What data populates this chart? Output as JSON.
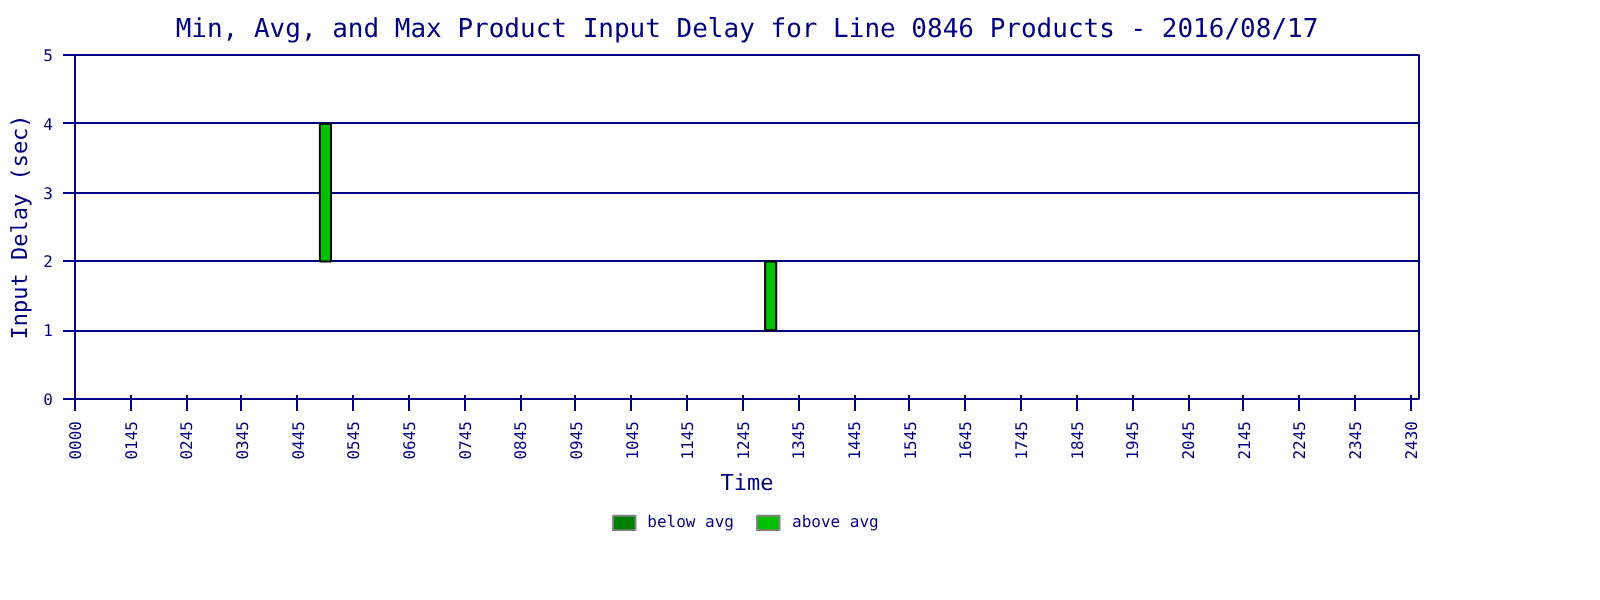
{
  "chart_data": {
    "type": "bar",
    "title": "Min, Avg, and Max Product Input Delay for Line 0846 Products - 2016/08/17",
    "xlabel": "Time",
    "ylabel": "Input Delay (sec)",
    "categories": [
      "0000",
      null,
      "0145",
      null,
      "0245",
      null,
      "0345",
      null,
      "0445",
      null,
      "0545",
      null,
      "0645",
      null,
      "0745",
      null,
      "0845",
      null,
      "0945",
      null,
      "1045",
      null,
      "1145",
      null,
      "1245",
      null,
      "1345",
      null,
      "1445",
      null,
      "1545",
      null,
      "1645",
      null,
      "1745",
      null,
      "1845",
      null,
      "1945",
      null,
      "2045",
      null,
      "2145",
      null,
      "2245",
      null,
      "2345",
      null,
      "2430"
    ],
    "series": [
      {
        "name": "below avg",
        "color": "#008000",
        "values": [
          null,
          null,
          null,
          null,
          null,
          null,
          null,
          null,
          null,
          null,
          null,
          null,
          null,
          null,
          null,
          null,
          null,
          null,
          null,
          null,
          null,
          null,
          null,
          null,
          null,
          null,
          null,
          null,
          null,
          null,
          null,
          null,
          null,
          null,
          null,
          null,
          null,
          null,
          null,
          null,
          null,
          null,
          null,
          null,
          null,
          null,
          null,
          null,
          null
        ]
      },
      {
        "name": "above avg",
        "color": "#00c000",
        "values": [
          null,
          null,
          null,
          null,
          null,
          null,
          null,
          null,
          null,
          2,
          null,
          null,
          null,
          null,
          null,
          null,
          null,
          null,
          null,
          null,
          null,
          null,
          null,
          null,
          null,
          1,
          null,
          null,
          null,
          null,
          null,
          null,
          null,
          null,
          null,
          null,
          null,
          null,
          null,
          null,
          null,
          null,
          null,
          null,
          null,
          null,
          null,
          null,
          null
        ],
        "base": [
          null,
          null,
          null,
          null,
          null,
          null,
          null,
          null,
          null,
          2,
          null,
          null,
          null,
          null,
          null,
          null,
          null,
          null,
          null,
          null,
          null,
          null,
          null,
          null,
          null,
          1,
          null,
          null,
          null,
          null,
          null,
          null,
          null,
          null,
          null,
          null,
          null,
          null,
          null,
          null,
          null,
          null,
          null,
          null,
          null,
          null,
          null,
          null,
          null
        ]
      }
    ],
    "ylim": [
      0,
      5
    ],
    "yticks": [
      0,
      1,
      2,
      3,
      4,
      5
    ],
    "grid": "y",
    "legend": "bottom"
  }
}
